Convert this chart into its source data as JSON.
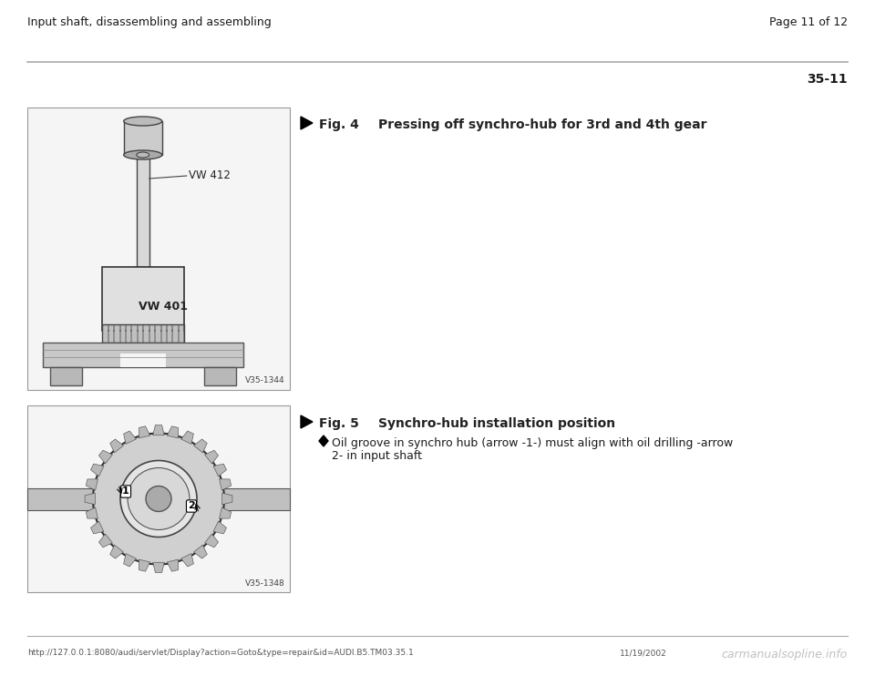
{
  "bg_color": "#ffffff",
  "header_left": "Input shaft, disassembling and assembling",
  "header_right": "Page 11 of 12",
  "section_number": "35-11",
  "fig4_label": "Fig. 4",
  "fig4_title": "Pressing off synchro-hub for 3rd and 4th gear",
  "fig5_label": "Fig. 5",
  "fig5_title": "Synchro-hub installation position",
  "fig5_bullet_line1": "Oil groove in synchro hub (arrow -1-) must align with oil drilling -arrow",
  "fig5_bullet_line2": "2- in input shaft",
  "footer_url": "http://127.0.0.1:8080/audi/servlet/Display?action=Goto&type=repair&id=AUDI.B5.TM03.35.1",
  "footer_date": "11/19/2002",
  "footer_watermark": "carmanualsopline.info",
  "fig4_image_label1": "VW 412",
  "fig4_image_label2": "VW 401",
  "fig4_image_code": "V35-1344",
  "fig5_image_code": "V35-1348",
  "header_line_color": "#aaaaaa",
  "text_color": "#1a1a1a",
  "fig_label_color": "#222222",
  "footer_line_color": "#aaaaaa"
}
